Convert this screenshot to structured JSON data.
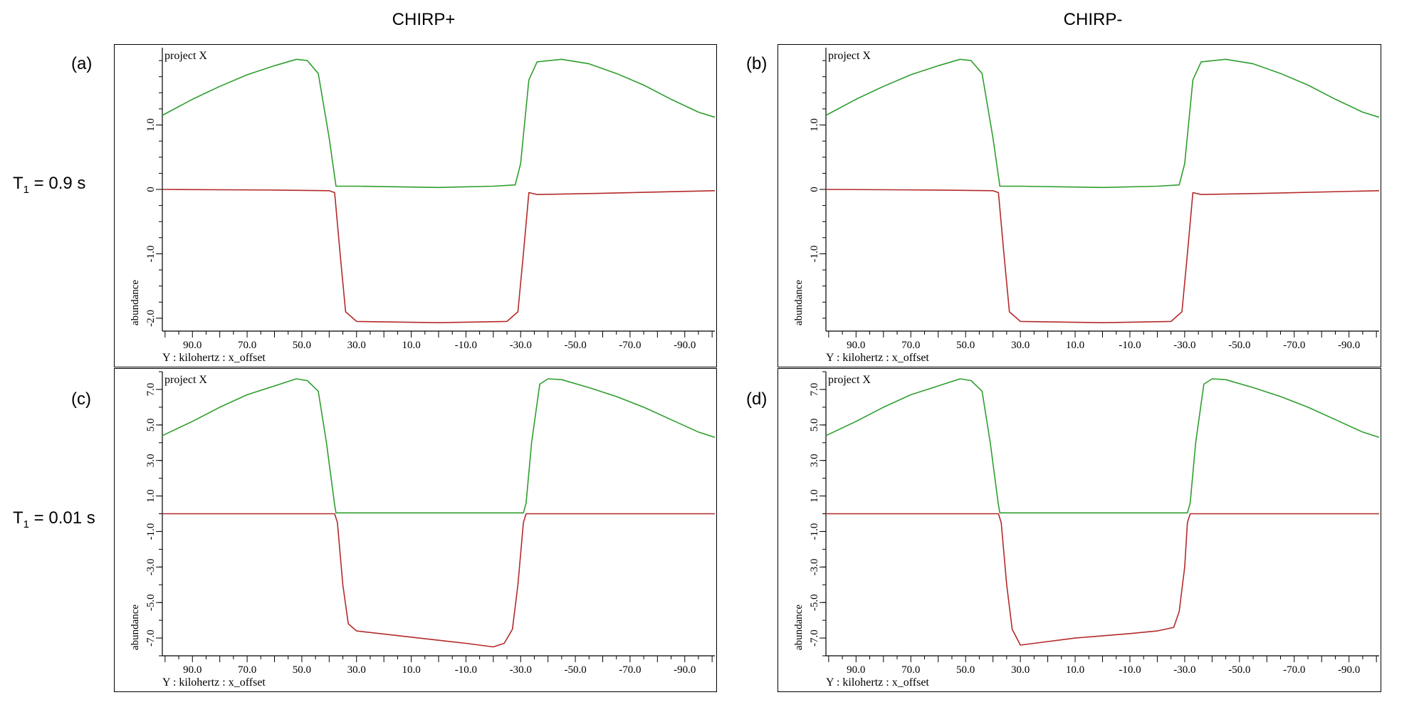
{
  "headers": {
    "left": "CHIRP+",
    "right": "CHIRP-"
  },
  "rows": [
    {
      "prefix": "T",
      "sub": "1",
      "suffix": " = 0.9 s"
    },
    {
      "prefix": "T",
      "sub": "1",
      "suffix": " = 0.01 s"
    }
  ],
  "colors": {
    "green": "#2e9e2e",
    "red": "#b42a2a"
  },
  "chart_data": [
    {
      "type": "line",
      "panel_label": "(a)",
      "title": "project X",
      "xlabel": "Y : kilohertz : x_offset",
      "ylabel": "abundance",
      "xlim": [
        101,
        -101
      ],
      "ylim": [
        -2.2,
        2.2
      ],
      "x_ticks": [
        "90.0",
        "70.0",
        "50.0",
        "30.0",
        "10.0",
        "-10.0",
        "-30.0",
        "-50.0",
        "-70.0",
        "-90.0"
      ],
      "y_ticks": [
        "1.0",
        "0",
        "-1.0",
        "-2.0"
      ],
      "series": [
        {
          "color": "green",
          "points": [
            [
              101,
              1.15
            ],
            [
              90,
              1.4
            ],
            [
              80,
              1.6
            ],
            [
              70,
              1.78
            ],
            [
              60,
              1.92
            ],
            [
              52,
              2.02
            ],
            [
              48,
              2.0
            ],
            [
              44,
              1.8
            ],
            [
              40,
              0.8
            ],
            [
              37.5,
              0.05
            ],
            [
              30,
              0.05
            ],
            [
              0,
              0.03
            ],
            [
              -20,
              0.05
            ],
            [
              -28,
              0.07
            ],
            [
              -30,
              0.4
            ],
            [
              -33,
              1.7
            ],
            [
              -36,
              1.98
            ],
            [
              -45,
              2.02
            ],
            [
              -55,
              1.95
            ],
            [
              -65,
              1.8
            ],
            [
              -75,
              1.62
            ],
            [
              -85,
              1.4
            ],
            [
              -95,
              1.2
            ],
            [
              -101,
              1.12
            ]
          ]
        },
        {
          "color": "red",
          "points": [
            [
              101,
              0.0
            ],
            [
              60,
              -0.01
            ],
            [
              40,
              -0.02
            ],
            [
              38,
              -0.05
            ],
            [
              36,
              -1.0
            ],
            [
              34,
              -1.9
            ],
            [
              30,
              -2.05
            ],
            [
              0,
              -2.07
            ],
            [
              -25,
              -2.05
            ],
            [
              -29,
              -1.9
            ],
            [
              -31,
              -1.0
            ],
            [
              -33,
              -0.05
            ],
            [
              -36,
              -0.08
            ],
            [
              -60,
              -0.06
            ],
            [
              -101,
              -0.02
            ]
          ]
        }
      ]
    },
    {
      "type": "line",
      "panel_label": "(b)",
      "title": "project X",
      "xlabel": "Y : kilohertz : x_offset",
      "ylabel": "abundance",
      "xlim": [
        101,
        -101
      ],
      "ylim": [
        -2.2,
        2.2
      ],
      "x_ticks": [
        "90.0",
        "70.0",
        "50.0",
        "30.0",
        "10.0",
        "-10.0",
        "-30.0",
        "-50.0",
        "-70.0",
        "-90.0"
      ],
      "y_ticks": [
        "1.0",
        "0",
        "-1.0"
      ],
      "series": [
        {
          "color": "green",
          "points": [
            [
              101,
              1.15
            ],
            [
              90,
              1.4
            ],
            [
              80,
              1.6
            ],
            [
              70,
              1.78
            ],
            [
              60,
              1.92
            ],
            [
              52,
              2.02
            ],
            [
              48,
              2.0
            ],
            [
              44,
              1.8
            ],
            [
              40,
              0.8
            ],
            [
              37.5,
              0.05
            ],
            [
              30,
              0.05
            ],
            [
              0,
              0.03
            ],
            [
              -20,
              0.05
            ],
            [
              -28,
              0.07
            ],
            [
              -30,
              0.4
            ],
            [
              -33,
              1.7
            ],
            [
              -36,
              1.98
            ],
            [
              -45,
              2.02
            ],
            [
              -55,
              1.95
            ],
            [
              -65,
              1.8
            ],
            [
              -75,
              1.62
            ],
            [
              -85,
              1.4
            ],
            [
              -95,
              1.2
            ],
            [
              -101,
              1.12
            ]
          ]
        },
        {
          "color": "red",
          "points": [
            [
              101,
              0.0
            ],
            [
              60,
              -0.01
            ],
            [
              40,
              -0.02
            ],
            [
              38,
              -0.05
            ],
            [
              36,
              -1.0
            ],
            [
              34,
              -1.9
            ],
            [
              30,
              -2.05
            ],
            [
              0,
              -2.07
            ],
            [
              -25,
              -2.05
            ],
            [
              -29,
              -1.9
            ],
            [
              -31,
              -1.0
            ],
            [
              -33,
              -0.05
            ],
            [
              -36,
              -0.08
            ],
            [
              -60,
              -0.06
            ],
            [
              -101,
              -0.02
            ]
          ]
        }
      ]
    },
    {
      "type": "line",
      "panel_label": "(c)",
      "title": "project X",
      "xlabel": "Y : kilohertz : x_offset",
      "ylabel": "abundance",
      "xlim": [
        101,
        -101
      ],
      "ylim": [
        -8,
        8
      ],
      "x_ticks": [
        "90.0",
        "70.0",
        "50.0",
        "30.0",
        "10.0",
        "-10.0",
        "-30.0",
        "-50.0",
        "-70.0",
        "-90.0"
      ],
      "y_ticks": [
        "7.0",
        "5.0",
        "3.0",
        "1.0",
        "-1.0",
        "-3.0",
        "-5.0",
        "-7.0"
      ],
      "series": [
        {
          "color": "green",
          "points": [
            [
              101,
              4.4
            ],
            [
              90,
              5.2
            ],
            [
              80,
              6.0
            ],
            [
              70,
              6.7
            ],
            [
              60,
              7.2
            ],
            [
              52,
              7.6
            ],
            [
              48,
              7.5
            ],
            [
              44,
              6.9
            ],
            [
              41,
              4.0
            ],
            [
              38,
              0.5
            ],
            [
              37.5,
              0.05
            ],
            [
              -31,
              0.05
            ],
            [
              -32,
              0.6
            ],
            [
              -34,
              4.0
            ],
            [
              -37,
              7.3
            ],
            [
              -40,
              7.6
            ],
            [
              -45,
              7.55
            ],
            [
              -55,
              7.1
            ],
            [
              -65,
              6.6
            ],
            [
              -75,
              6.0
            ],
            [
              -85,
              5.3
            ],
            [
              -95,
              4.6
            ],
            [
              -101,
              4.3
            ]
          ]
        },
        {
          "color": "red",
          "points": [
            [
              101,
              0.0
            ],
            [
              38,
              0.0
            ],
            [
              37,
              -0.5
            ],
            [
              35,
              -4.0
            ],
            [
              33,
              -6.2
            ],
            [
              30,
              -6.6
            ],
            [
              10,
              -6.95
            ],
            [
              -10,
              -7.3
            ],
            [
              -20,
              -7.5
            ],
            [
              -24,
              -7.3
            ],
            [
              -27,
              -6.5
            ],
            [
              -29,
              -4.0
            ],
            [
              -31,
              -0.5
            ],
            [
              -32,
              0.0
            ],
            [
              -101,
              0.0
            ]
          ]
        }
      ]
    },
    {
      "type": "line",
      "panel_label": "(d)",
      "title": "project X",
      "xlabel": "Y : kilohertz : x_offset",
      "ylabel": "abundance",
      "xlim": [
        101,
        -101
      ],
      "ylim": [
        -8,
        8
      ],
      "x_ticks": [
        "90.0",
        "70.0",
        "50.0",
        "30.0",
        "10.0",
        "-10.0",
        "-30.0",
        "-50.0",
        "-70.0",
        "-90.0"
      ],
      "y_ticks": [
        "7.0",
        "5.0",
        "3.0",
        "1.0",
        "-1.0",
        "-3.0",
        "-5.0",
        "-7.0"
      ],
      "series": [
        {
          "color": "green",
          "points": [
            [
              101,
              4.4
            ],
            [
              90,
              5.2
            ],
            [
              80,
              6.0
            ],
            [
              70,
              6.7
            ],
            [
              60,
              7.2
            ],
            [
              52,
              7.6
            ],
            [
              48,
              7.5
            ],
            [
              44,
              6.9
            ],
            [
              41,
              4.0
            ],
            [
              38,
              0.5
            ],
            [
              37.5,
              0.05
            ],
            [
              -31,
              0.05
            ],
            [
              -32,
              0.6
            ],
            [
              -34,
              4.0
            ],
            [
              -37,
              7.3
            ],
            [
              -40,
              7.6
            ],
            [
              -45,
              7.55
            ],
            [
              -55,
              7.1
            ],
            [
              -65,
              6.6
            ],
            [
              -75,
              6.0
            ],
            [
              -85,
              5.3
            ],
            [
              -95,
              4.6
            ],
            [
              -101,
              4.3
            ]
          ]
        },
        {
          "color": "red",
          "points": [
            [
              101,
              0.0
            ],
            [
              38,
              0.0
            ],
            [
              37,
              -0.5
            ],
            [
              35,
              -4.0
            ],
            [
              33,
              -6.5
            ],
            [
              30,
              -7.4
            ],
            [
              25,
              -7.3
            ],
            [
              10,
              -7.0
            ],
            [
              -10,
              -6.75
            ],
            [
              -20,
              -6.6
            ],
            [
              -26,
              -6.4
            ],
            [
              -28,
              -5.5
            ],
            [
              -30,
              -3.0
            ],
            [
              -31,
              -0.5
            ],
            [
              -32,
              0.0
            ],
            [
              -101,
              0.0
            ]
          ]
        }
      ]
    }
  ]
}
